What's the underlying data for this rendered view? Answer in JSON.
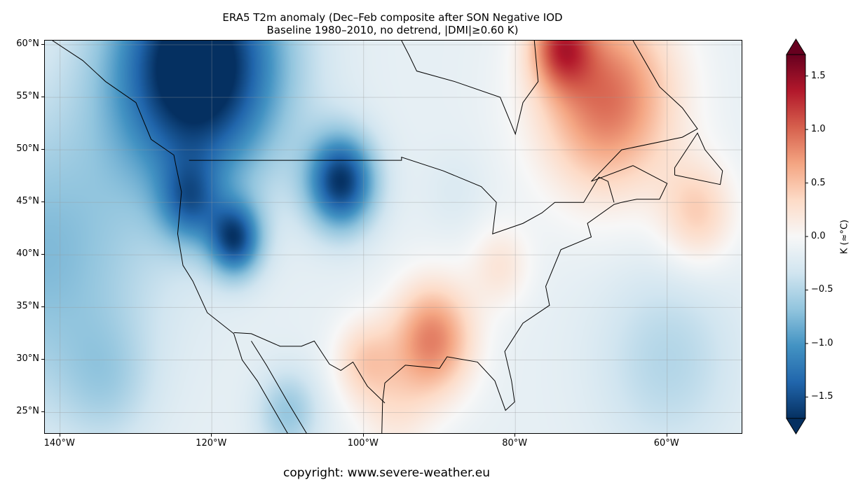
{
  "title": {
    "line1": "ERA5 T2m anomaly (Dec–Feb composite after SON Negative IOD",
    "line2": "Baseline 1980–2010, no detrend, |DMI|≥0.60 K)"
  },
  "map": {
    "projection": "PlateCarree",
    "lon_range": [
      -142,
      -50
    ],
    "lat_range": [
      22.9,
      60.4
    ],
    "gridlines": true,
    "x_ticks": [
      {
        "value": -140,
        "label": "140°W"
      },
      {
        "value": -120,
        "label": "120°W"
      },
      {
        "value": -100,
        "label": "100°W"
      },
      {
        "value": -80,
        "label": "80°W"
      },
      {
        "value": -60,
        "label": "60°W"
      }
    ],
    "y_ticks": [
      {
        "value": 60,
        "label": "60°N"
      },
      {
        "value": 55,
        "label": "55°N"
      },
      {
        "value": 50,
        "label": "50°N"
      },
      {
        "value": 45,
        "label": "45°N"
      },
      {
        "value": 40,
        "label": "40°N"
      },
      {
        "value": 35,
        "label": "35°N"
      },
      {
        "value": 30,
        "label": "30°N"
      },
      {
        "value": 25,
        "label": "25°N"
      }
    ]
  },
  "colorbar": {
    "colormap": "RdBu_r",
    "colors": [
      "#053061",
      "#2166ac",
      "#4393c3",
      "#92c5de",
      "#d1e5f0",
      "#f7f7f7",
      "#fddbc7",
      "#f4a582",
      "#d6604d",
      "#b2182b",
      "#67001f"
    ],
    "range": [
      -1.7,
      1.7
    ],
    "extend": "both",
    "label": "K (≈°C)",
    "ticks": [
      {
        "value": 1.5,
        "label": "1.5"
      },
      {
        "value": 1.0,
        "label": "1.0"
      },
      {
        "value": 0.5,
        "label": "0.5"
      },
      {
        "value": 0.0,
        "label": "0.0"
      },
      {
        "value": -0.5,
        "label": "−0.5"
      },
      {
        "value": -1.0,
        "label": "−1.0"
      },
      {
        "value": -1.5,
        "label": "−1.5"
      }
    ]
  },
  "copyright": "copyright: www.severe-weather.eu"
}
